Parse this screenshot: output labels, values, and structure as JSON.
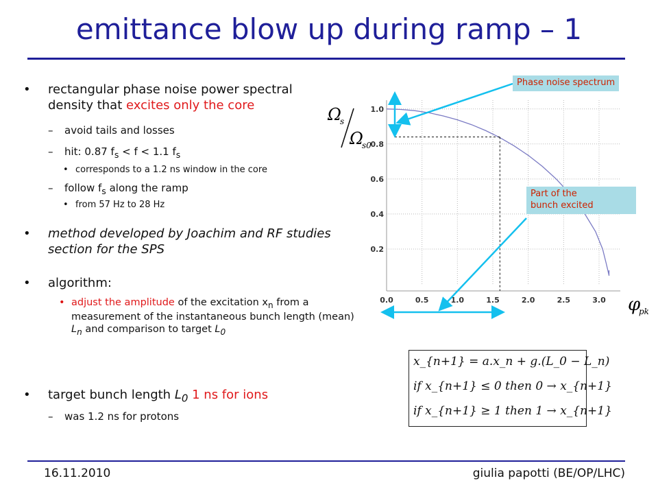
{
  "slide": {
    "title": "emittance blow up during ramp – 1",
    "footer_date": "16.11.2010",
    "footer_author": "giulia papotti (BE/OP/LHC)"
  },
  "bullets": {
    "b1_part1": "rectangular phase noise power spectral density that",
    "b1_part2": "excites only the core",
    "b1_sub1": "avoid tails and losses",
    "b1_sub2_pre": "hit:  0.87 f",
    "b1_sub2_s": "s",
    "b1_sub2_mid": " < f < 1.1 f",
    "b1_sub2_s2": "s",
    "b1_sub2_sub": "corresponds to a 1.2 ns window in the core",
    "b1_sub3_pre": "follow f",
    "b1_sub3_s": "s",
    "b1_sub3_post": " along the ramp",
    "b1_sub3_sub": "from 57 Hz to 28 Hz",
    "b2": "method developed by Joachim and RF studies section for the SPS",
    "b3": "algorithm:",
    "b3_sub_red": "adjust the amplitude",
    "b3_sub_a": " of the excitation x",
    "b3_sub_xn": "n",
    "b3_sub_b": " from a measurement of the instantaneous bunch length (mean) ",
    "b3_sub_L": "L",
    "b3_sub_Ln": "n",
    "b3_sub_c": " and comparison to target ",
    "b3_sub_L0": "L",
    "b3_sub_0": "0",
    "b4_pre": "target bunch length ",
    "b4_L": "L",
    "b4_0": "0",
    "b4_red": "  1 ns for ions",
    "b4_sub": "was 1.2 ns for protons"
  },
  "callouts": {
    "phase_noise": "Phase noise spectrum",
    "part_excited_1": "Part of the",
    "part_excited_2": "bunch excited"
  },
  "chart_data": {
    "type": "line",
    "x_ticks": [
      "0.0",
      "0.5",
      "1.0",
      "1.5",
      "2.0",
      "2.5",
      "3.0"
    ],
    "y_ticks": [
      "0.2",
      "0.4",
      "0.6",
      "0.8",
      "1.0"
    ],
    "xlim": [
      0,
      3.3
    ],
    "ylim": [
      0,
      1.05
    ],
    "x": [
      0.0,
      0.2,
      0.4,
      0.6,
      0.8,
      1.0,
      1.2,
      1.4,
      1.6,
      1.8,
      2.0,
      2.2,
      2.4,
      2.6,
      2.8,
      2.95,
      3.05,
      3.1,
      3.14
    ],
    "y": [
      1.0,
      0.997,
      0.99,
      0.978,
      0.96,
      0.938,
      0.91,
      0.876,
      0.836,
      0.789,
      0.735,
      0.672,
      0.598,
      0.51,
      0.4,
      0.3,
      0.2,
      0.12,
      0.05
    ],
    "dashed_x": 1.6,
    "dashed_y": 0.84,
    "grid": true,
    "y_symbol_num": "Ω",
    "y_symbol_num_sub": "s",
    "y_symbol_den": "Ω",
    "y_symbol_den_sub": "s0",
    "x_symbol": "φ",
    "x_symbol_sub": "pk"
  },
  "equations": {
    "line1": "x_{n+1} = a.x_n + g.(L_0 − L_n)",
    "line2": "if  x_{n+1} ≤ 0  then  0 → x_{n+1}",
    "line3": "if  x_{n+1} ≥ 1  then  1 → x_{n+1}"
  },
  "colors": {
    "title": "#1f1f99",
    "accent_red": "#e0191b",
    "callout_bg": "#a9dce6",
    "arrow": "#14c0ee",
    "curve": "#7b7bc4"
  }
}
